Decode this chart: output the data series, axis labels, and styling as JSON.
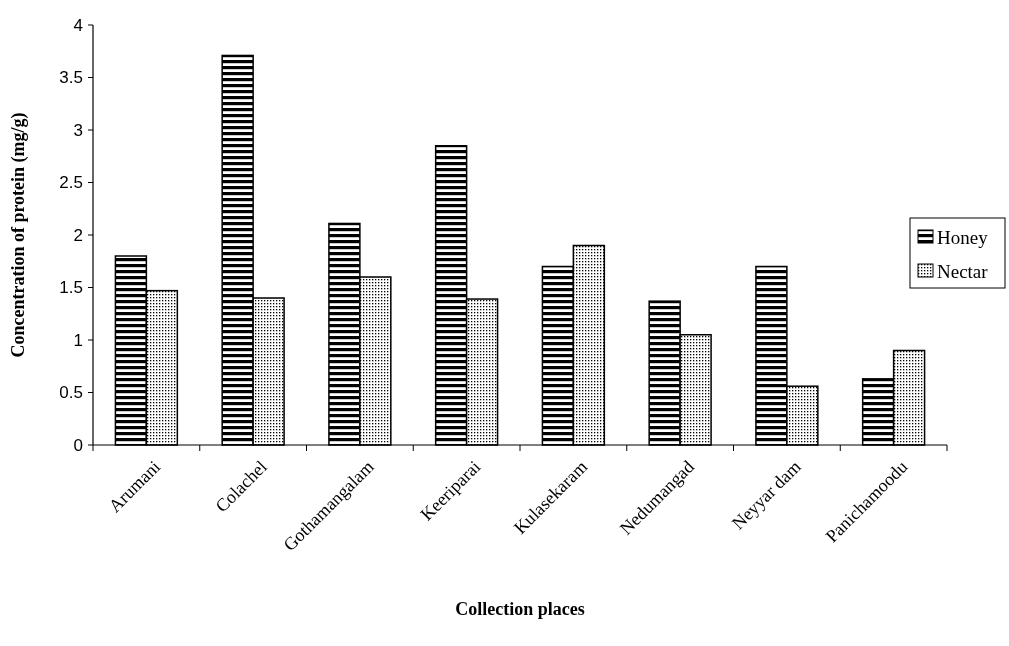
{
  "chart_data": {
    "type": "bar",
    "xlabel": "Collection places",
    "ylabel": "Concentration of protein (mg/g)",
    "categories": [
      "Arumani",
      "Colachel",
      "Gothamangalam",
      "Keeriparai",
      "Kulasekaram",
      "Nedumangad",
      "Neyyar dam",
      "Panichamoodu"
    ],
    "series": [
      {
        "name": "Honey",
        "color": "#000000",
        "values": [
          1.8,
          3.71,
          2.11,
          2.85,
          1.7,
          1.37,
          1.7,
          0.63
        ]
      },
      {
        "name": "Nectar",
        "color": "#000000",
        "values": [
          1.47,
          1.4,
          1.6,
          1.39,
          1.9,
          1.05,
          0.56,
          0.9
        ]
      }
    ],
    "ylim": [
      0,
      4
    ],
    "yticks": [
      0,
      {
        "value": 0.5,
        "label": "0.5"
      },
      1,
      {
        "value": 1.5,
        "label": "1.5"
      },
      2,
      {
        "value": 2.5,
        "label": "2.5"
      },
      3,
      {
        "value": 3.5,
        "label": "3.5"
      },
      4
    ],
    "legend": "right",
    "grid": false
  }
}
